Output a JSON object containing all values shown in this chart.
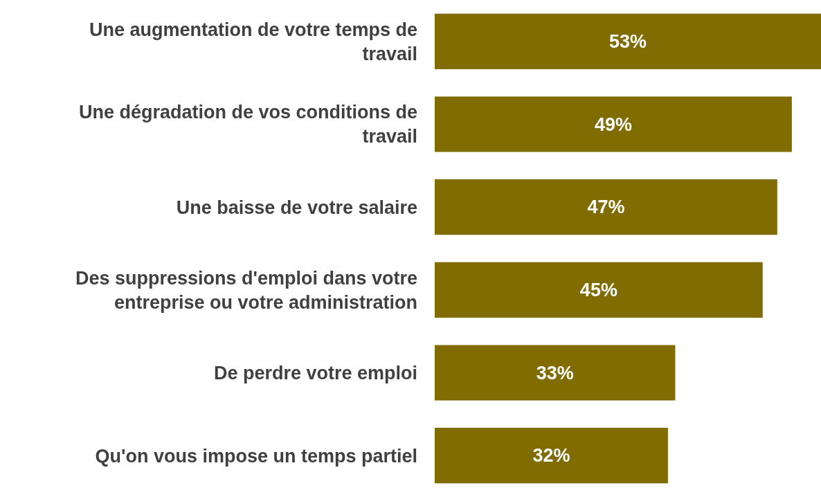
{
  "chart_data": {
    "type": "bar",
    "orientation": "horizontal",
    "categories": [
      "Une augmentation de votre temps de travail",
      "Une dégradation de vos conditions de travail",
      "Une baisse de votre salaire",
      "Des suppressions d'emploi dans votre entreprise ou votre administration",
      "De perdre votre emploi",
      "Qu'on vous impose un temps partiel"
    ],
    "values": [
      53,
      49,
      47,
      45,
      33,
      32
    ],
    "value_labels": [
      "53%",
      "49%",
      "47%",
      "45%",
      "33%",
      "32%"
    ],
    "color": "#806c00"
  }
}
